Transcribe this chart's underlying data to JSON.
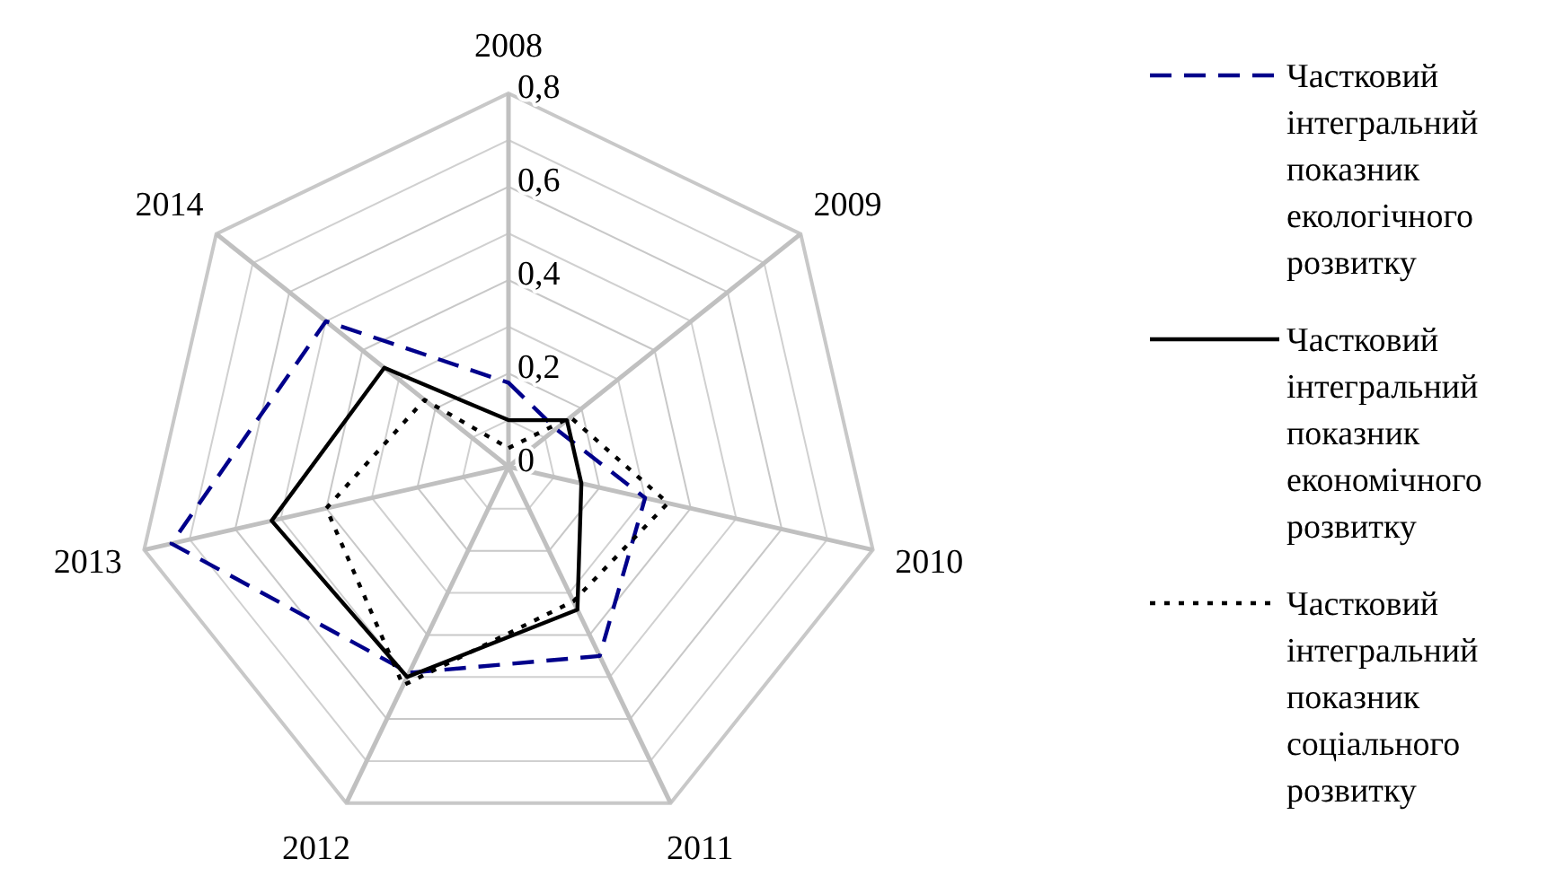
{
  "chart_data": {
    "type": "radar",
    "categories": [
      "2008",
      "2009",
      "2010",
      "2011",
      "2012",
      "2013",
      "2014"
    ],
    "ylim": [
      0,
      0.8
    ],
    "yticks": [
      {
        "value": 0,
        "label": "0"
      },
      {
        "value": 0.2,
        "label": "0,2"
      },
      {
        "value": 0.4,
        "label": "0,4"
      },
      {
        "value": 0.6,
        "label": "0,6"
      },
      {
        "value": 0.8,
        "label": "0,8"
      }
    ],
    "grid": true,
    "legend": "right",
    "marker": "none",
    "series": [
      {
        "name": "Частковий інтегральний показник екологічного розвитку",
        "color": "#00008b",
        "line_style": "dashed",
        "values": [
          0.18,
          0.13,
          0.3,
          0.45,
          0.49,
          0.74,
          0.5
        ]
      },
      {
        "name": "Частковий інтегральний показник економічного розвитку",
        "color": "#000000",
        "line_style": "solid",
        "values": [
          0.1,
          0.16,
          0.16,
          0.34,
          0.5,
          0.52,
          0.34
        ]
      },
      {
        "name": "Частковий інтегральний показник соціального розвитку",
        "color": "#000000",
        "line_style": "dotted",
        "values": [
          0.04,
          0.17,
          0.35,
          0.32,
          0.52,
          0.4,
          0.23
        ]
      }
    ]
  }
}
